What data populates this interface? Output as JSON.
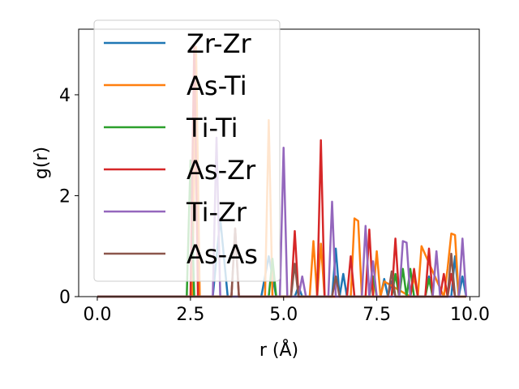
{
  "chart_data": {
    "type": "line",
    "xlabel": "r (Å)",
    "ylabel": "g(r)",
    "xlim": [
      -0.5,
      10.25
    ],
    "ylim": [
      0,
      5.3
    ],
    "xticks": [
      0.0,
      2.5,
      5.0,
      7.5,
      10.0
    ],
    "xtick_labels": [
      "0.0",
      "2.5",
      "5.0",
      "7.5",
      "10.0"
    ],
    "yticks": [
      0,
      2,
      4
    ],
    "ytick_labels": [
      "0",
      "2",
      "4"
    ],
    "grid": false,
    "legend_position": "upper-left",
    "series": [
      {
        "name": "Zr-Zr",
        "color": "#1f77b4",
        "x": [
          0,
          3.1,
          3.3,
          3.5,
          4.4,
          4.6,
          4.8,
          5.3,
          5.4,
          5.5,
          6.3,
          6.4,
          6.5,
          6.6,
          6.7,
          7.6,
          7.7,
          7.8,
          7.9,
          8.0,
          8.8,
          8.9,
          9.0,
          9.5,
          9.6,
          9.7,
          9.8,
          9.9
        ],
        "y": [
          0,
          0,
          1.55,
          0,
          0,
          0.8,
          0,
          0,
          0.2,
          0,
          0,
          0.95,
          0,
          0.45,
          0,
          0,
          0.35,
          0,
          0.3,
          0,
          0,
          0.4,
          0,
          0,
          0.8,
          0,
          0.4,
          0
        ]
      },
      {
        "name": "As-Ti",
        "color": "#ff7f0e",
        "x": [
          0,
          2.55,
          2.65,
          2.75,
          4.5,
          4.6,
          4.7,
          5.7,
          5.8,
          5.9,
          6.0,
          6.1,
          6.8,
          6.9,
          7.0,
          7.1,
          7.4,
          7.5,
          7.6,
          7.7,
          8.4,
          8.5,
          8.6,
          8.7,
          9.3,
          9.4,
          9.5,
          9.6,
          9.7,
          9.9
        ],
        "y": [
          0,
          0,
          4.95,
          0,
          0,
          3.5,
          0,
          0,
          1.1,
          0,
          1.05,
          0,
          0,
          1.55,
          1.5,
          0,
          0,
          0.9,
          0,
          0.3,
          0,
          0.4,
          0,
          1.0,
          0,
          0.55,
          1.25,
          1.22,
          0,
          0
        ]
      },
      {
        "name": "Ti-Ti",
        "color": "#2ca02c",
        "x": [
          0,
          2.4,
          2.5,
          2.6,
          4.6,
          4.7,
          4.8,
          7.3,
          7.4,
          7.5,
          7.9,
          8.0,
          8.1,
          8.2,
          8.3,
          8.4,
          8.5,
          8.8,
          8.9,
          9.0
        ],
        "y": [
          0,
          0,
          2.7,
          0,
          0,
          0.75,
          0,
          0,
          0.4,
          0,
          0,
          0.45,
          0,
          0.55,
          0,
          0.55,
          0,
          0,
          0.35,
          0
        ]
      },
      {
        "name": "As-Zr",
        "color": "#d62728",
        "x": [
          0,
          2.5,
          2.6,
          2.7,
          3.6,
          3.7,
          3.8,
          5.2,
          5.3,
          5.4,
          5.9,
          6.0,
          6.1,
          6.7,
          6.8,
          6.9,
          7.2,
          7.3,
          7.4,
          7.9,
          8.0,
          8.1,
          8.4,
          8.5,
          8.6,
          8.8,
          8.9,
          9.0,
          9.2,
          9.3,
          9.4,
          9.5,
          9.6
        ],
        "y": [
          0,
          0,
          5.0,
          0,
          0,
          1.35,
          0,
          0,
          1.3,
          0,
          0,
          3.1,
          0,
          0,
          0.8,
          0,
          0,
          1.33,
          0,
          0,
          1.15,
          0,
          0,
          0.55,
          0,
          0,
          0.95,
          0,
          0,
          0.45,
          0,
          0.45,
          0
        ]
      },
      {
        "name": "Ti-Zr",
        "color": "#9467bd",
        "x": [
          0,
          3.1,
          3.2,
          3.3,
          4.9,
          5.0,
          5.1,
          5.4,
          5.5,
          5.6,
          6.2,
          6.3,
          6.4,
          7.1,
          7.2,
          7.3,
          7.4,
          7.5,
          8.1,
          8.2,
          8.3,
          8.4,
          9.0,
          9.1,
          9.2,
          9.7,
          9.8,
          9.9
        ],
        "y": [
          0,
          0,
          3.15,
          0,
          0,
          2.95,
          0,
          0,
          0.4,
          0,
          0,
          1.88,
          0,
          0,
          1.4,
          0,
          0.7,
          0,
          0,
          1.1,
          1.07,
          0,
          0,
          0.9,
          0,
          0,
          1.15,
          0
        ]
      },
      {
        "name": "As-As",
        "color": "#8c564b",
        "x": [
          0,
          3.6,
          3.7,
          3.8,
          5.2,
          5.3,
          5.4,
          6.3,
          6.4,
          6.5,
          7.8,
          7.9,
          8.0,
          9.4,
          9.5,
          9.6,
          9.9
        ],
        "y": [
          0,
          0,
          1.35,
          0,
          0,
          0.65,
          0,
          0,
          0.4,
          0,
          0,
          0.5,
          0,
          0,
          0.85,
          0,
          0
        ]
      }
    ]
  }
}
